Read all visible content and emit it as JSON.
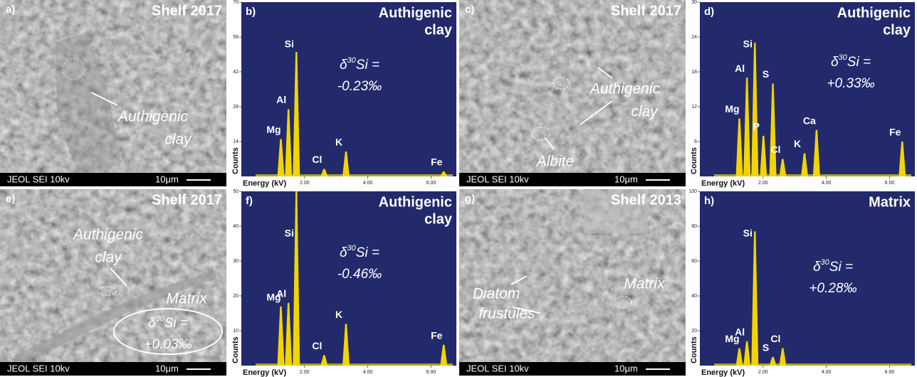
{
  "images": [
    {
      "label": "a)",
      "site": "Shelf 2017",
      "notes": [
        "Authigenic",
        "clay"
      ],
      "footer": "JEOL SEI   10kv",
      "scale": "10μm"
    },
    {
      "label": "c)",
      "site": "Shelf 2017",
      "notes": [
        "Authigenic",
        "clay",
        "Albite"
      ],
      "footer": "JEOL SEI   10kv",
      "scale": "10μm"
    },
    {
      "label": "e)",
      "site": "Shelf 2017",
      "notes": [
        "Authigenic",
        "clay",
        "Matrix"
      ],
      "footer": "JEOL SEI   10kv",
      "scale": "10μm",
      "isotope": {
        "symbol": "δ",
        "mass": "30",
        "element": "Si =",
        "value": "+0.03‰"
      }
    },
    {
      "label": "g)",
      "site": "Shelf 2013",
      "notes": [
        "Diatom",
        "frustules",
        "Matrix"
      ],
      "footer": "JEOL SEI   10kv",
      "scale": "10μm"
    }
  ],
  "chart_data": [
    {
      "type": "spectrum",
      "label": "b)",
      "title": [
        "Authigenic",
        "clay"
      ],
      "y_label": "Counts",
      "x_label": "Energy (kV)",
      "xlim": [
        0,
        6.8
      ],
      "ylim": [
        0,
        70
      ],
      "yticks": [
        14,
        28,
        42,
        56,
        70
      ],
      "xticks": [
        {
          "value": 2,
          "label": "2.00"
        },
        {
          "value": 4,
          "label": "4.00"
        },
        {
          "value": 6,
          "label": "6.00"
        }
      ],
      "isotope": {
        "symbol": "δ",
        "mass": "30",
        "element": "Si =",
        "value": "-0.23‰"
      },
      "color": "#f2d400",
      "background": "#222a6c",
      "peaks": {
        "names": [
          "Mg",
          "Al",
          "Si",
          "Cl",
          "K",
          "Fe"
        ],
        "x": [
          1.25,
          1.49,
          1.74,
          2.62,
          3.31,
          6.4
        ],
        "values": [
          15,
          27,
          50,
          3,
          10,
          2
        ]
      }
    },
    {
      "type": "spectrum",
      "label": "d)",
      "title": [
        "Authigenic",
        "clay"
      ],
      "y_label": "Counts",
      "x_label": "Energy (kV)",
      "xlim": [
        0,
        6.8
      ],
      "ylim": [
        0,
        30
      ],
      "yticks": [
        6,
        12,
        18,
        24,
        30
      ],
      "xticks": [
        {
          "value": 2,
          "label": "2.00"
        },
        {
          "value": 4,
          "label": "4.00"
        },
        {
          "value": 6,
          "label": "6.00"
        }
      ],
      "isotope": {
        "symbol": "δ",
        "mass": "30",
        "element": "Si =",
        "value": "+0.33‰"
      },
      "color": "#f2d400",
      "background": "#222a6c",
      "peaks": {
        "names": [
          "Mg",
          "Al",
          "Si",
          "P",
          "S",
          "Cl",
          "K",
          "Ca",
          "Fe"
        ],
        "x": [
          1.25,
          1.49,
          1.74,
          2.01,
          2.31,
          2.62,
          3.31,
          3.69,
          6.4
        ],
        "values": [
          10,
          17,
          23,
          7,
          16,
          3,
          4,
          8,
          6
        ]
      }
    },
    {
      "type": "spectrum",
      "label": "f)",
      "title": [
        "Authigenic",
        "clay"
      ],
      "y_label": "Counts",
      "x_label": "Energy (kV)",
      "xlim": [
        0,
        6.8
      ],
      "ylim": [
        0,
        50
      ],
      "yticks": [
        10,
        20,
        30,
        40,
        50
      ],
      "xticks": [
        {
          "value": 2,
          "label": "2.00"
        },
        {
          "value": 4,
          "label": "4.00"
        },
        {
          "value": 6,
          "label": "6.00"
        }
      ],
      "isotope": {
        "symbol": "δ",
        "mass": "30",
        "element": "Si =",
        "value": "-0.46‰"
      },
      "color": "#f2d400",
      "background": "#222a6c",
      "peaks": {
        "names": [
          "Mg",
          "Al",
          "Si",
          "Cl",
          "K",
          "Fe"
        ],
        "x": [
          1.25,
          1.49,
          1.74,
          2.62,
          3.31,
          6.4
        ],
        "values": [
          17,
          18,
          50,
          3,
          12,
          6
        ]
      }
    },
    {
      "type": "spectrum",
      "label": "h)",
      "title": [
        "Matrix"
      ],
      "y_label": "Counts",
      "x_label": "Energy (kV)",
      "xlim": [
        0,
        6.8
      ],
      "ylim": [
        0,
        100
      ],
      "yticks": [
        20,
        40,
        60,
        80,
        100
      ],
      "xticks": [
        {
          "value": 2,
          "label": "2.00"
        },
        {
          "value": 4,
          "label": "4.00"
        },
        {
          "value": 6,
          "label": "6.00"
        }
      ],
      "isotope": {
        "symbol": "δ",
        "mass": "30",
        "element": "Si =",
        "value": "+0.28‰"
      },
      "color": "#f2d400",
      "background": "#222a6c",
      "peaks": {
        "names": [
          "Mg",
          "Al",
          "Si",
          "S",
          "Cl"
        ],
        "x": [
          1.25,
          1.49,
          1.74,
          2.31,
          2.62
        ],
        "values": [
          10,
          14,
          77,
          5,
          10
        ]
      }
    }
  ]
}
